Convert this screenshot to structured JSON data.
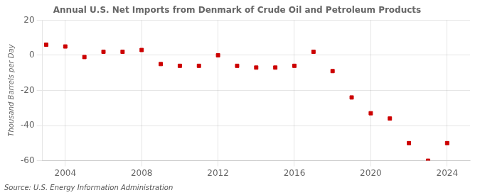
{
  "chart_data": {
    "type": "scatter",
    "title": "Annual U.S. Net Imports from Denmark of Crude Oil and Petroleum Products",
    "ylabel": "Thousand Barrels per Day",
    "annotation": "Source: U.S. Energy Information Administration",
    "x": [
      2003,
      2004,
      2005,
      2006,
      2007,
      2008,
      2009,
      2010,
      2011,
      2012,
      2013,
      2014,
      2015,
      2016,
      2017,
      2018,
      2019,
      2020,
      2021,
      2022,
      2023,
      2024
    ],
    "values": [
      6,
      5,
      -1,
      2,
      2,
      3,
      -5,
      -6,
      -6,
      0,
      -6,
      -7,
      -7,
      -6,
      2,
      -9,
      -24,
      -33,
      -36,
      -50,
      -60,
      -50
    ],
    "color": "#cc0000",
    "marker": "square",
    "xlim": [
      2002.8,
      2025.2
    ],
    "xticks": [
      2004,
      2008,
      2012,
      2016,
      2020,
      2024
    ],
    "ylim": [
      -60,
      20
    ],
    "yticks": [
      -60,
      -40,
      -20,
      0,
      20
    ],
    "grid": true
  }
}
